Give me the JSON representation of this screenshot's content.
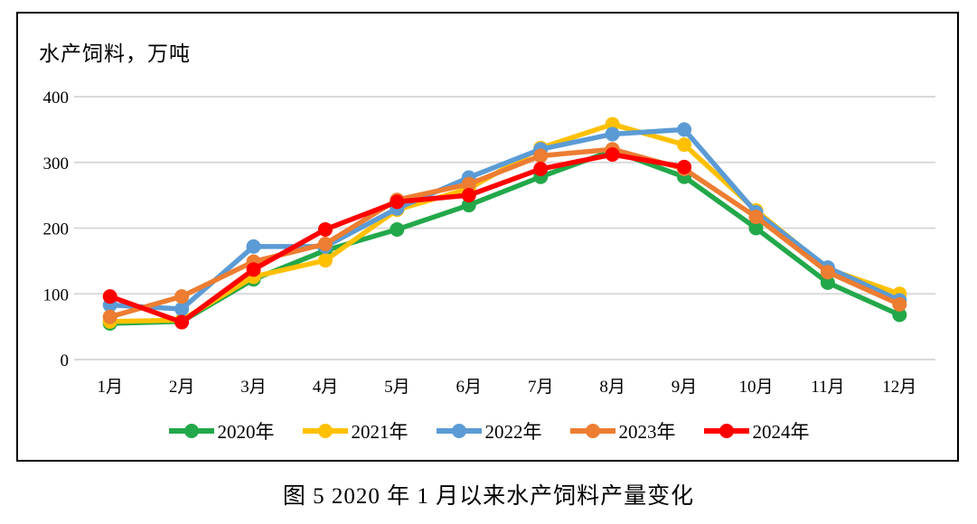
{
  "figure": {
    "caption": "图 5 2020 年 1 月以来水产饲料产量变化"
  },
  "chart_data": {
    "type": "line",
    "title": "水产饲料，万吨",
    "xlabel": "",
    "ylabel": "万吨",
    "categories": [
      "1月",
      "2月",
      "3月",
      "4月",
      "5月",
      "6月",
      "7月",
      "8月",
      "9月",
      "10月",
      "11月",
      "12月"
    ],
    "series": [
      {
        "name": "2020年",
        "color": "#22A84A",
        "values": [
          55,
          58,
          122,
          166,
          198,
          235,
          278,
          318,
          278,
          200,
          117,
          68
        ]
      },
      {
        "name": "2021年",
        "color": "#FFC000",
        "values": [
          58,
          60,
          126,
          151,
          228,
          260,
          322,
          358,
          327,
          227,
          138,
          100
        ]
      },
      {
        "name": "2022年",
        "color": "#5B9BD5",
        "values": [
          83,
          77,
          172,
          172,
          230,
          277,
          320,
          343,
          350,
          224,
          140,
          90
        ]
      },
      {
        "name": "2023年",
        "color": "#ED7D31",
        "values": [
          65,
          96,
          149,
          176,
          243,
          267,
          310,
          320,
          290,
          217,
          133,
          84
        ]
      },
      {
        "name": "2024年",
        "color": "#FF0000",
        "values": [
          96,
          57,
          137,
          198,
          240,
          250,
          290,
          312,
          293,
          null,
          null,
          null
        ]
      }
    ],
    "ylim": [
      0,
      400
    ],
    "yticks": [
      0,
      100,
      200,
      300,
      400
    ],
    "grid": true,
    "gridline_color": "#D9D9D9",
    "legend_position": "bottom"
  }
}
